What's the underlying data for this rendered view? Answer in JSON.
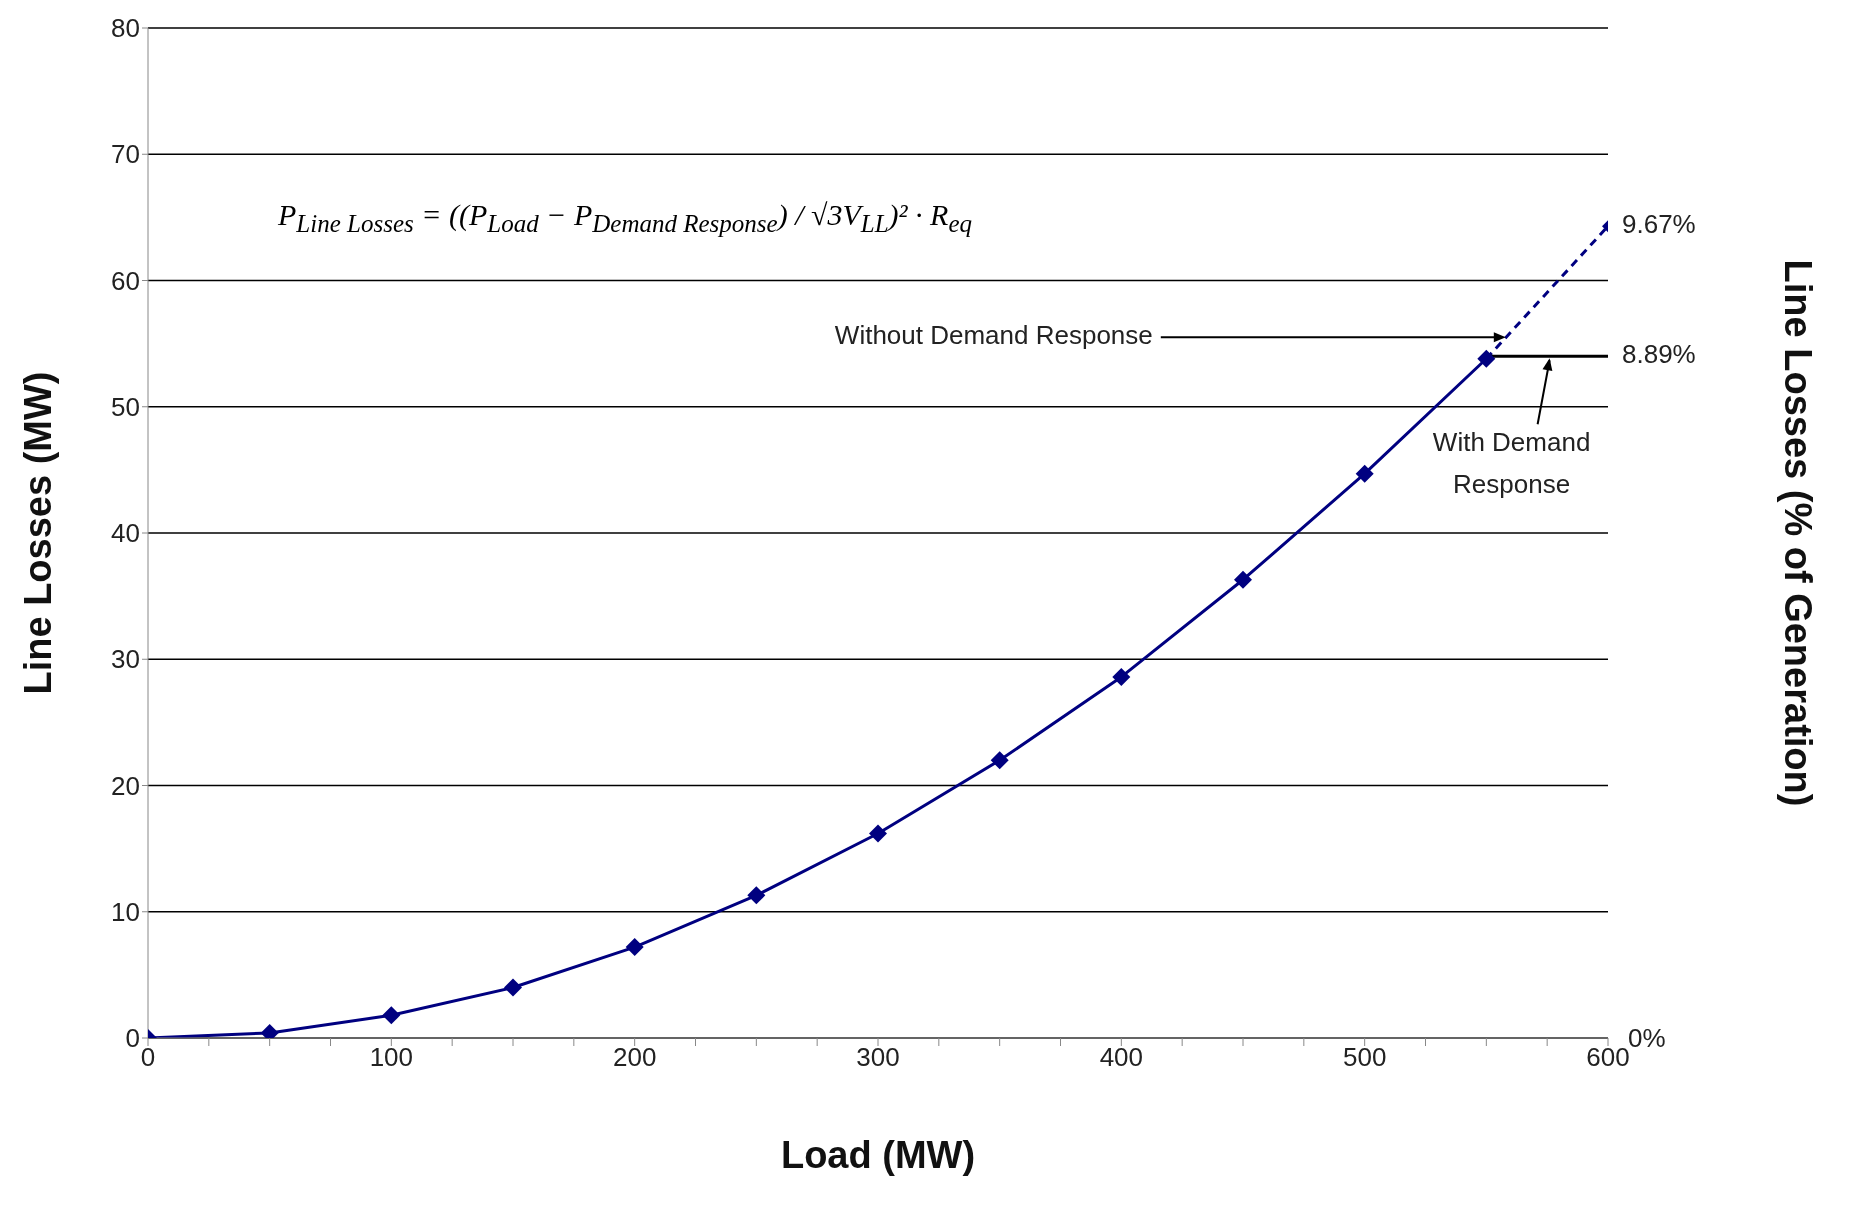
{
  "chart_data": {
    "type": "line",
    "xlabel": "Load (MW)",
    "ylabel": "Line Losses (MW)",
    "y2label": "Line Losses (% of Generation)",
    "xlim": [
      0,
      600
    ],
    "xticks": [
      0,
      {
        "value": 25,
        "label": null
      },
      100,
      {
        "value": 75,
        "label": null
      },
      {
        "value": 125,
        "label": null
      },
      {
        "value": 150,
        "label": null
      },
      {
        "value": 175,
        "label": null
      },
      200,
      {
        "value": 225,
        "label": null
      },
      {
        "value": 250,
        "label": null
      },
      {
        "value": 275,
        "label": null
      },
      300,
      {
        "value": 325,
        "label": null
      },
      {
        "value": 350,
        "label": null
      },
      {
        "value": 375,
        "label": null
      },
      400,
      {
        "value": 425,
        "label": null
      },
      {
        "value": 450,
        "label": null
      },
      {
        "value": 475,
        "label": null
      },
      500,
      {
        "value": 525,
        "label": null
      },
      {
        "value": 550,
        "label": null
      },
      {
        "value": 575,
        "label": null
      },
      600,
      {
        "value": 50,
        "label": null
      }
    ],
    "ylim": [
      0,
      80
    ],
    "yticks": [
      0,
      10,
      20,
      30,
      40,
      50,
      60,
      70,
      80
    ],
    "grid": "y",
    "marker": "diamond",
    "line_style": "solid",
    "series": [
      {
        "color": "#000080",
        "x": [
          0,
          50,
          100,
          150,
          200,
          250,
          300,
          350,
          400,
          450,
          500,
          550
        ],
        "values": [
          0,
          0.4,
          1.8,
          4.0,
          7.2,
          11.3,
          16.2,
          22.0,
          28.6,
          36.3,
          44.7,
          53.8
        ]
      },
      {
        "color": "#000080",
        "x": [
          550,
          600
        ],
        "values": [
          53.8,
          64.3
        ],
        "line_style": "dashed"
      },
      {
        "color": "#000000",
        "x": [
          550,
          600
        ],
        "values": [
          54,
          54
        ],
        "marker": "none"
      }
    ],
    "annotations": [
      "P$_{Line Losses}$ = ((P$_{Load}$ − P$_{Demand Response}$) / √3V$_{LL}$)² · R$_{eq}$",
      {
        "text": "Without Demand Response",
        "x": 558,
        "y": 55.5
      },
      {
        "text": "With Demand Response",
        "x": 576,
        "y": 54
      },
      {
        "text": "9.67%",
        "x": 600,
        "y": 64.3
      },
      {
        "text": "8.89%",
        "x": 600,
        "y": 54
      },
      "0%"
    ]
  }
}
